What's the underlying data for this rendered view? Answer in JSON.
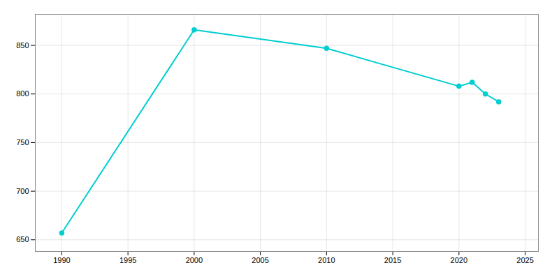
{
  "chart_data": {
    "type": "line",
    "x": [
      1990,
      2000,
      2010,
      2020,
      2021,
      2022,
      2023
    ],
    "values": [
      657,
      866,
      847,
      808,
      812,
      800,
      792
    ],
    "color": "#00CED1",
    "marker": "circle",
    "xlim": [
      1988,
      2026
    ],
    "ylim": [
      638,
      882
    ],
    "xticks": [
      1990,
      1995,
      2000,
      2005,
      2010,
      2015,
      2020,
      2025
    ],
    "yticks": [
      650,
      700,
      750,
      800,
      850
    ],
    "grid": true
  }
}
